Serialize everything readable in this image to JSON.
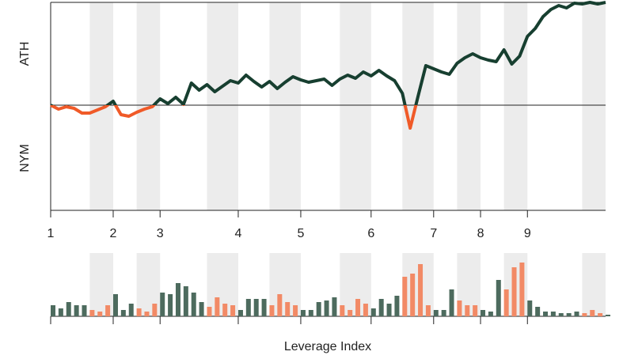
{
  "chart_data": {
    "type": "line",
    "top_label": "ATH",
    "bottom_label": "NYM",
    "bar_axis_label": "Leverage Index",
    "x": [
      0,
      1,
      2,
      3,
      4,
      5,
      6,
      7,
      8,
      9,
      10,
      11,
      12,
      13,
      14,
      15,
      16,
      17,
      18,
      19,
      20,
      21,
      22,
      23,
      24,
      25,
      26,
      27,
      28,
      29,
      30,
      31,
      32,
      33,
      34,
      35,
      36,
      37,
      38,
      39,
      40,
      41,
      42,
      43,
      44,
      45,
      46,
      47,
      48,
      49,
      50,
      51,
      52,
      53,
      54,
      55,
      56,
      57,
      58,
      59,
      60,
      61,
      62,
      63,
      64,
      65,
      66,
      67,
      68,
      69,
      70,
      71
    ],
    "values": [
      0,
      -0.5,
      -0.2,
      -0.4,
      -1.0,
      -1.0,
      -0.6,
      -0.2,
      0.5,
      -1.2,
      -1.4,
      -0.9,
      -0.5,
      -0.2,
      0.8,
      0.2,
      1.0,
      0.1,
      2.8,
      1.9,
      2.6,
      1.7,
      2.4,
      3.1,
      2.8,
      3.8,
      3.0,
      2.3,
      3.0,
      2.1,
      2.9,
      3.6,
      3.2,
      2.9,
      3.1,
      3.3,
      2.5,
      3.3,
      3.8,
      3.4,
      4.2,
      3.7,
      4.4,
      3.7,
      3.1,
      1.5,
      -2.9,
      1.1,
      5.0,
      4.6,
      4.2,
      3.9,
      5.3,
      6.0,
      6.5,
      6.0,
      5.7,
      5.5,
      7.0,
      5.2,
      6.2,
      8.7,
      9.7,
      11.2,
      12.1,
      12.6,
      12.3,
      12.9,
      12.8,
      13.0,
      12.8,
      13.0
    ],
    "above_color": "#173f30",
    "below_color": "#f05a28",
    "xlim": [
      0,
      71
    ],
    "ylim": [
      -13.3,
      13
    ],
    "xticks": [
      {
        "value": 0,
        "label": "1"
      },
      {
        "value": 8,
        "label": "2"
      },
      {
        "value": 14,
        "label": "3"
      },
      {
        "value": 24,
        "label": "4"
      },
      {
        "value": 32,
        "label": "5"
      },
      {
        "value": 41,
        "label": "6"
      },
      {
        "value": 49,
        "label": "7"
      },
      {
        "value": 55,
        "label": "8"
      },
      {
        "value": 61,
        "label": "9"
      }
    ],
    "shaded_ranges": [
      [
        5,
        8
      ],
      [
        11,
        14
      ],
      [
        20,
        24
      ],
      [
        28,
        32
      ],
      [
        37,
        41
      ],
      [
        45,
        49
      ],
      [
        52,
        55
      ],
      [
        58,
        61
      ],
      [
        68,
        71
      ]
    ],
    "shade_color": "#ececec",
    "bar_values": [
      7,
      5,
      9,
      7,
      7,
      4,
      3,
      7,
      14,
      4,
      8,
      5,
      3,
      8,
      15,
      14,
      21,
      19,
      15,
      9,
      6,
      12,
      8,
      7,
      4,
      11,
      11,
      11,
      7,
      14,
      9,
      7,
      4,
      4,
      9,
      10,
      12,
      7,
      4,
      11,
      8,
      5,
      11,
      8,
      13,
      25,
      27,
      33,
      7,
      4,
      4,
      17,
      10,
      7,
      7,
      4,
      3,
      23,
      17,
      31,
      34,
      10,
      6,
      3,
      3,
      2,
      2,
      3,
      2,
      4,
      2,
      1
    ],
    "bar_ylim": [
      0,
      40
    ],
    "bar_color": "#4d6b5e",
    "bar_highlight_color": "#f28a66"
  }
}
